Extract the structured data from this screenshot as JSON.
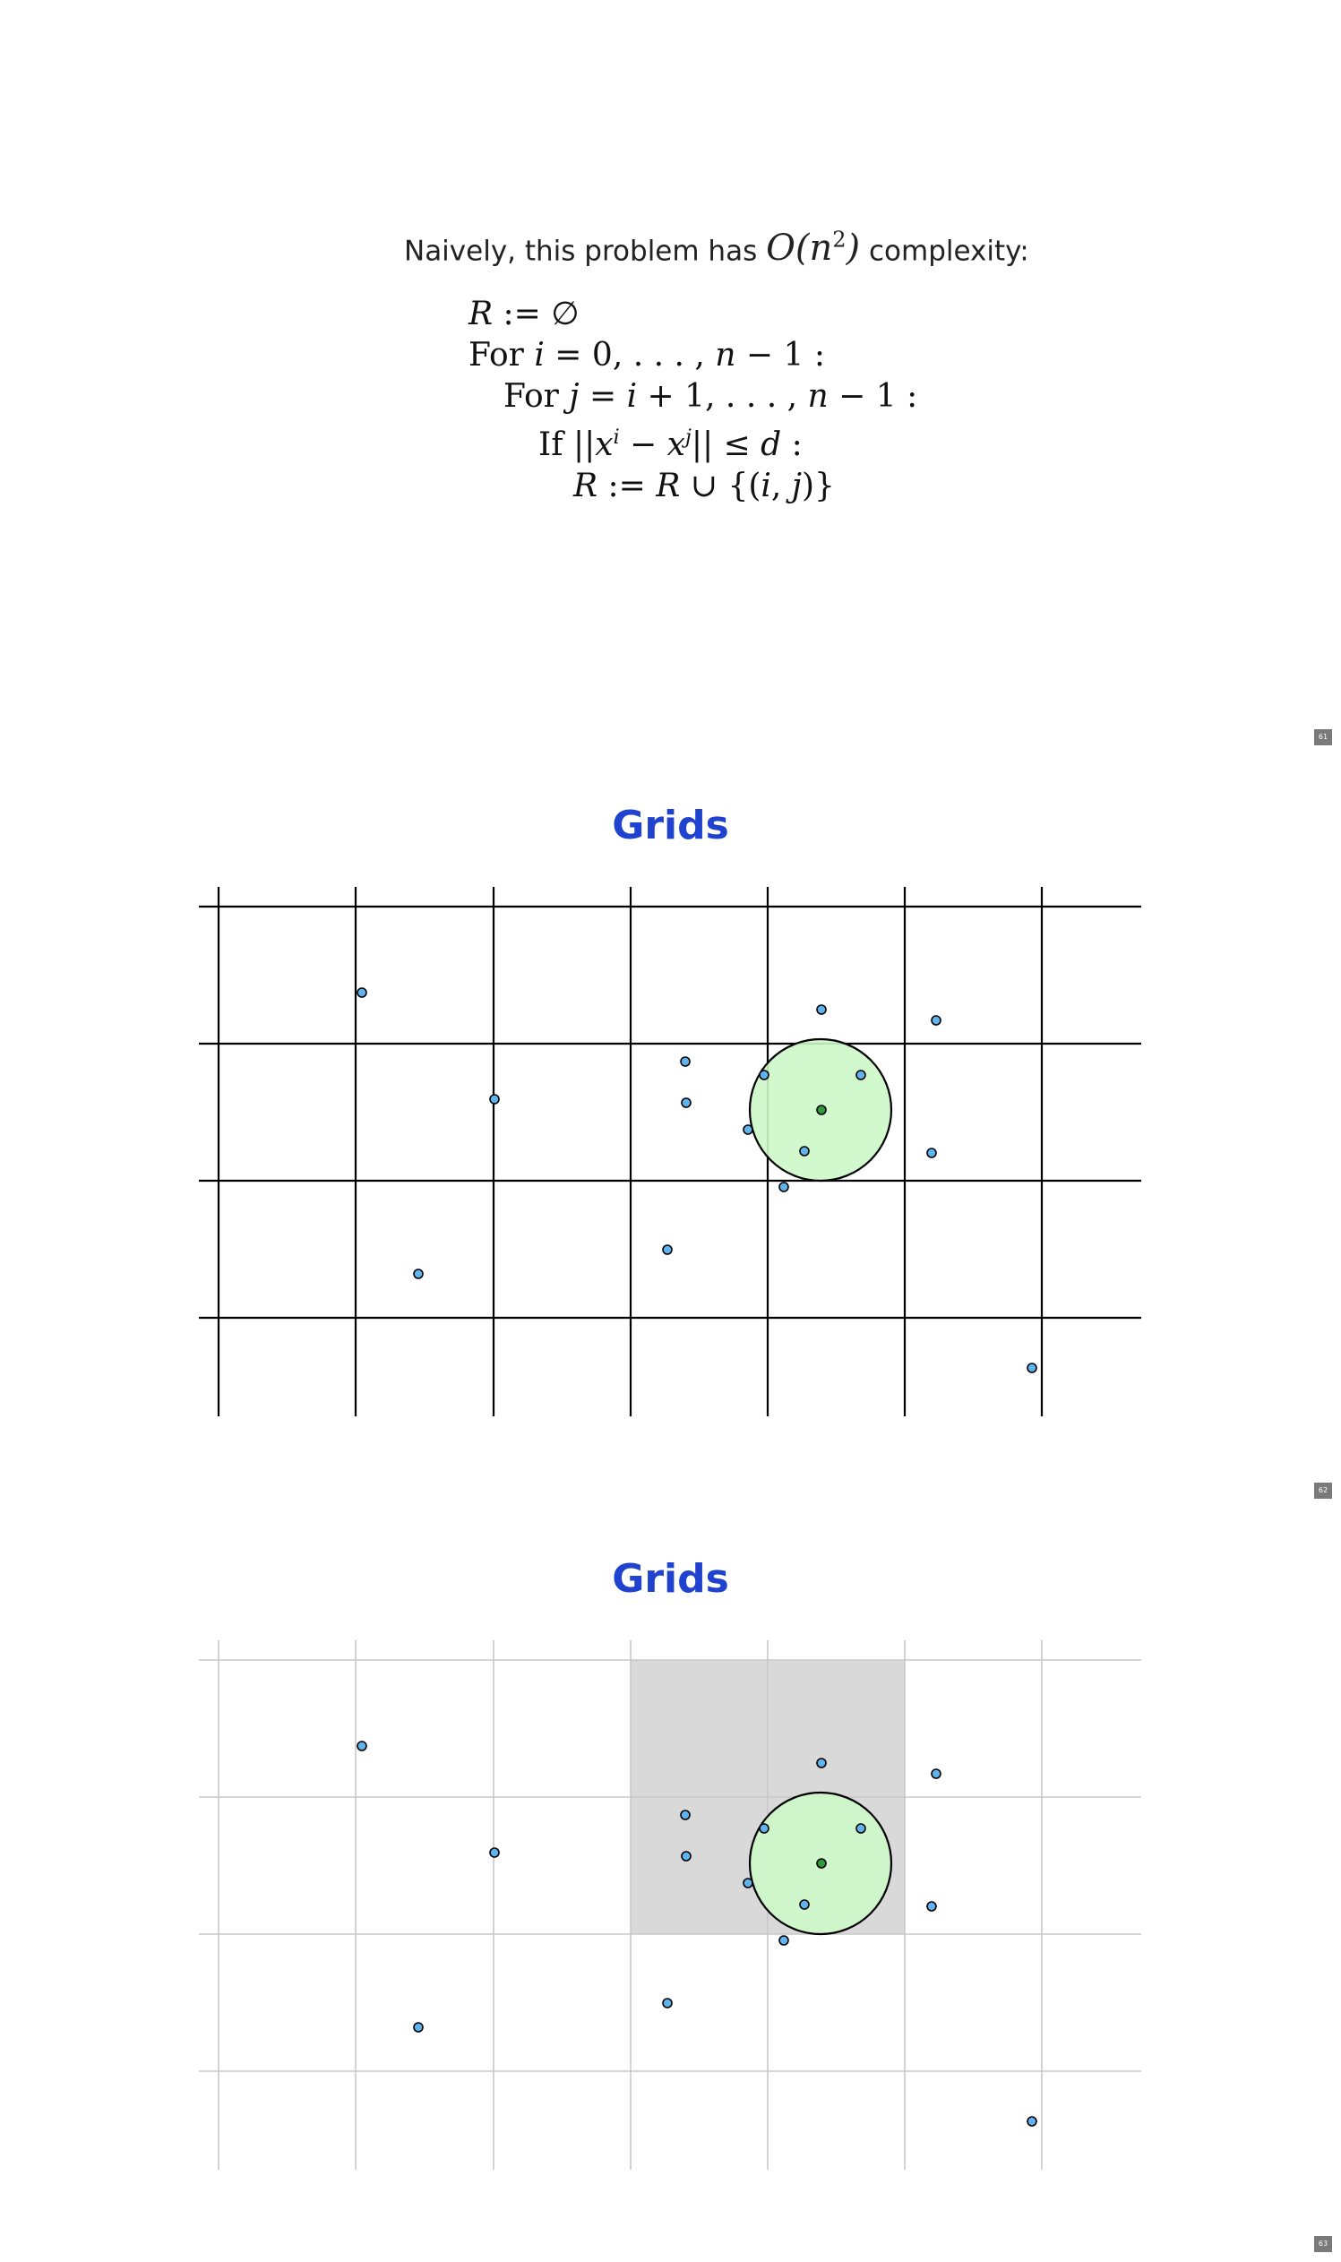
{
  "slide1": {
    "intro_text": "Naively, this problem has",
    "complexity_expr": "O(n",
    "complexity_sup": "2",
    "complexity_close": ")",
    "intro_suffix": "complexity:",
    "algorithm_lines": [
      "R := ∅",
      "For i = 0, . . . , n − 1 :",
      "For j = i + 1, . . . , n − 1 :",
      "If ||x^i − x^j|| ≤ d :",
      "R := R ∪ {(i, j)}"
    ],
    "page_number": "61"
  },
  "slide2": {
    "title": "Grids",
    "page_number": "62"
  },
  "slide3": {
    "title": "Grids",
    "page_number": "63"
  },
  "colors": {
    "title": "#1f42cf",
    "point_fill": "#5fb4ef",
    "query_point": "#2e9a3c",
    "circle_fill": "#ccf8c8",
    "highlight_cells": "#d9d9d9",
    "grid_line_dark": "#000000",
    "grid_line_light": "#c8c8c8"
  }
}
